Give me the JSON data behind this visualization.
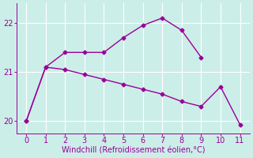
{
  "line1_x": [
    0,
    1,
    2,
    3,
    4,
    5,
    6,
    7,
    8,
    9
  ],
  "line1_y": [
    20.0,
    21.1,
    21.4,
    21.4,
    21.4,
    21.7,
    21.95,
    22.1,
    21.85,
    21.3
  ],
  "line2_x": [
    0,
    1,
    2,
    3,
    4,
    5,
    6,
    7,
    8,
    9,
    10,
    11
  ],
  "line2_y": [
    20.0,
    21.1,
    21.05,
    20.95,
    20.85,
    20.75,
    20.65,
    20.55,
    20.4,
    20.3,
    20.7,
    19.93
  ],
  "line_color": "#990099",
  "marker": "D",
  "marker_size": 2.5,
  "xlabel": "Windchill (Refroidissement éolien,°C)",
  "xlim": [
    -0.5,
    11.5
  ],
  "ylim": [
    19.75,
    22.4
  ],
  "yticks": [
    20,
    21,
    22
  ],
  "xticks": [
    0,
    1,
    2,
    3,
    4,
    5,
    6,
    7,
    8,
    9,
    10,
    11
  ],
  "bg_color": "#cceee8",
  "grid_color": "#ffffff",
  "label_color": "#990099",
  "tick_color": "#990099",
  "xlabel_fontsize": 7,
  "tick_fontsize": 7,
  "linewidth": 1.0
}
